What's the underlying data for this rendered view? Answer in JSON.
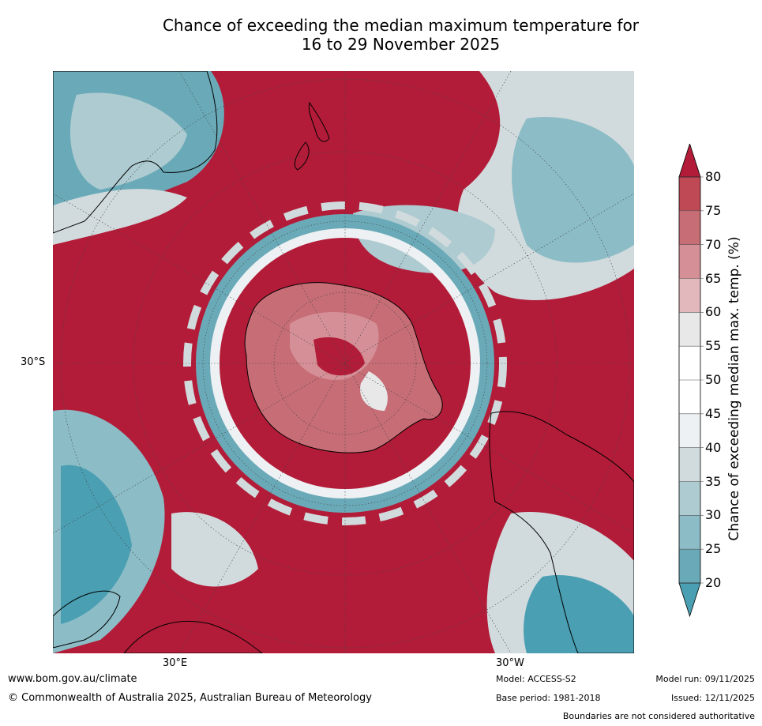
{
  "title": {
    "line1": "Chance of exceeding the median maximum temperature for",
    "line2": "16 to 29 November 2025"
  },
  "map": {
    "projection": "south-polar-stereographic",
    "lat_label": "30°S",
    "lon_labels": {
      "east": "30°E",
      "west": "30°W"
    },
    "features": [
      "Antarctica",
      "Australia",
      "New Zealand",
      "South America",
      "Africa",
      "Madagascar"
    ]
  },
  "colorbar": {
    "title": "Chance of exceeding median max. temp. (%)",
    "ticks": [
      "20",
      "25",
      "30",
      "35",
      "40",
      "45",
      "50",
      "55",
      "60",
      "65",
      "70",
      "75",
      "80"
    ],
    "colors": [
      "#4a9fb2",
      "#6aaab8",
      "#8cbcc6",
      "#adcbd0",
      "#d1dbdd",
      "#edf1f3",
      "#ffffff",
      "#ffffff",
      "#e8e8e8",
      "#e2b8bc",
      "#d58f97",
      "#c76d76",
      "#bf4a56",
      "#b21c38"
    ],
    "extend": "both"
  },
  "footer": {
    "website": "www.bom.gov.au/climate",
    "copyright": "© Commonwealth of Australia 2025, Australian Bureau of Meteorology",
    "model": "Model: ACCESS-S2",
    "base_period": "Base period: 1981-2018",
    "model_run": "Model run: 09/11/2025",
    "issued": "Issued: 12/11/2025",
    "disclaimer": "Boundaries are not considered authoritative"
  }
}
